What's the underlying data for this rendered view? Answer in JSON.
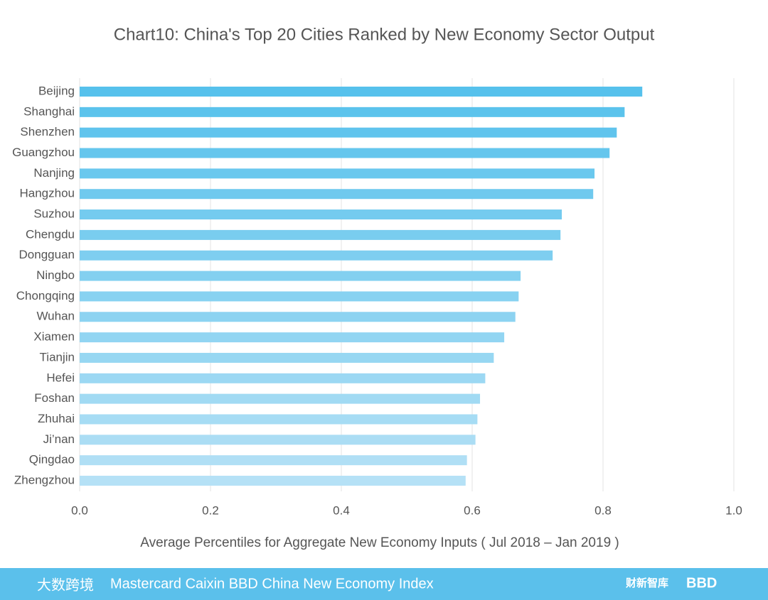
{
  "chart_data": {
    "type": "barh",
    "title": "Chart10:  China's Top 20 Cities Ranked by New Economy Sector Output",
    "xlabel": "Average Percentiles for Aggregate New Economy Inputs ( Jul 2018 – Jan 2019 )",
    "categories": [
      "Beijing",
      "Shanghai",
      "Shenzhen",
      "Guangzhou",
      "Nanjing",
      "Hangzhou",
      "Suzhou",
      "Chengdu",
      "Dongguan",
      "Ningbo",
      "Chongqing",
      "Wuhan",
      "Xiamen",
      "Tianjin",
      "Hefei",
      "Foshan",
      "Zhuhai",
      "Ji’nan",
      "Qingdao",
      "Zhengzhou"
    ],
    "values": [
      0.86,
      0.833,
      0.821,
      0.81,
      0.787,
      0.785,
      0.737,
      0.735,
      0.723,
      0.674,
      0.671,
      0.666,
      0.649,
      0.633,
      0.62,
      0.612,
      0.608,
      0.605,
      0.592,
      0.59
    ],
    "colors": [
      "#56c1ec",
      "#5bc3ec",
      "#60c4ed",
      "#65c6ed",
      "#6ac8ee",
      "#6fc9ee",
      "#74cbef",
      "#79cdef",
      "#7ecef0",
      "#83d0f0",
      "#88d2f1",
      "#8dd3f1",
      "#92d5f2",
      "#97d7f2",
      "#9cd8f3",
      "#a1daf3",
      "#a6dcf4",
      "#abddf4",
      "#b0dff5",
      "#b5e1f6"
    ],
    "xlim": [
      0,
      1
    ],
    "xticks": [
      {
        "value": 0,
        "label": "0.0"
      },
      0.2,
      0.4,
      0.6,
      0.8,
      {
        "value": 1,
        "label": "1.0"
      }
    ],
    "grid": true
  },
  "footer": {
    "title": "Mastercard Caixin BBD China New Economy Index",
    "logo_left": "大数跨境",
    "logo_mid": "财新智库",
    "logo_right": "BBD"
  }
}
